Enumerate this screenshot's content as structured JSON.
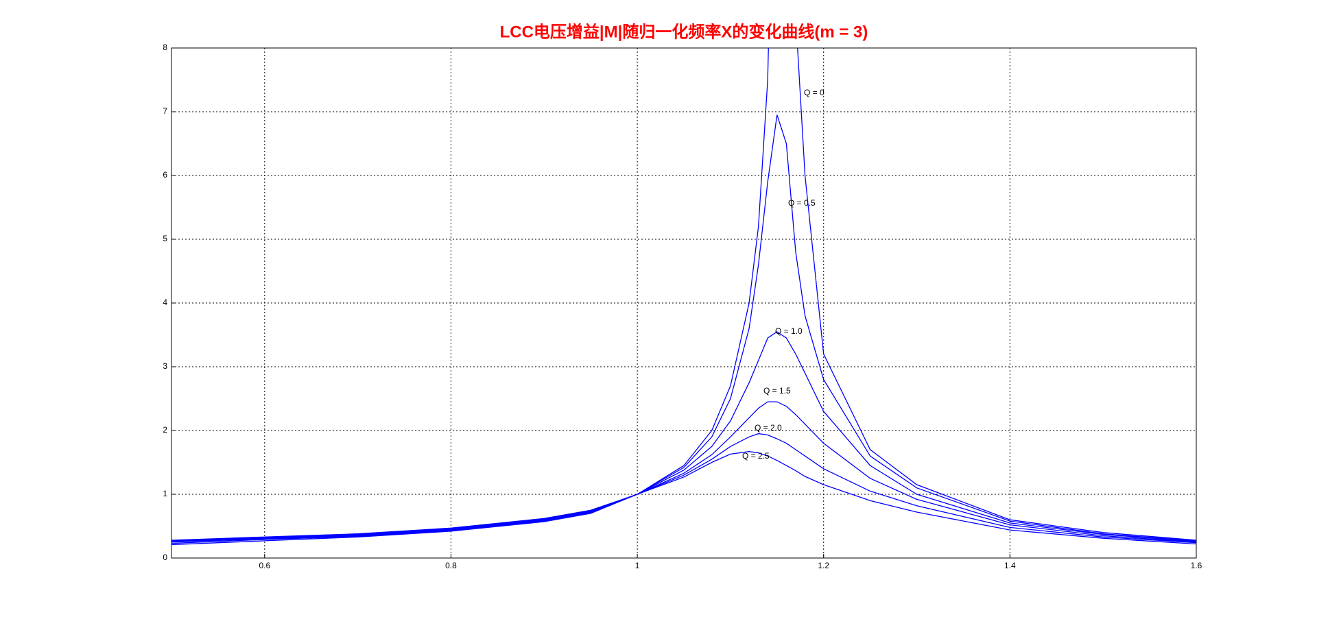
{
  "chart_data": {
    "type": "line",
    "title": "LCC电压增益|M|随归一化频率X的变化曲线(m = 3)",
    "x": [
      0.5,
      0.6,
      0.7,
      0.8,
      0.9,
      0.95,
      1.0,
      1.05,
      1.08,
      1.1,
      1.12,
      1.13,
      1.14,
      1.15,
      1.16,
      1.17,
      1.18,
      1.2,
      1.25,
      1.3,
      1.4,
      1.5,
      1.6
    ],
    "series": [
      {
        "name": "Q = 0",
        "color": "#0000ff",
        "values": [
          0.28,
          0.33,
          0.38,
          0.47,
          0.62,
          0.75,
          1,
          1.45,
          2.0,
          2.7,
          4.0,
          5.2,
          7.5,
          14,
          14,
          8.5,
          6.0,
          3.2,
          1.7,
          1.15,
          0.6,
          0.4,
          0.28
        ]
      },
      {
        "name": "Q = 0.5",
        "color": "#0000ff",
        "values": [
          0.27,
          0.32,
          0.37,
          0.46,
          0.61,
          0.74,
          1,
          1.42,
          1.9,
          2.5,
          3.6,
          4.6,
          5.9,
          6.95,
          6.5,
          4.8,
          3.8,
          2.8,
          1.6,
          1.1,
          0.58,
          0.38,
          0.27
        ]
      },
      {
        "name": "Q = 1.0",
        "color": "#0000ff",
        "values": [
          0.26,
          0.31,
          0.36,
          0.45,
          0.6,
          0.73,
          1,
          1.38,
          1.75,
          2.15,
          2.75,
          3.1,
          3.45,
          3.55,
          3.45,
          3.2,
          2.9,
          2.3,
          1.45,
          1.0,
          0.55,
          0.37,
          0.26
        ]
      },
      {
        "name": "Q = 1.5",
        "color": "#0000ff",
        "values": [
          0.25,
          0.3,
          0.35,
          0.44,
          0.59,
          0.72,
          1,
          1.33,
          1.62,
          1.9,
          2.2,
          2.35,
          2.45,
          2.45,
          2.38,
          2.25,
          2.1,
          1.8,
          1.25,
          0.92,
          0.52,
          0.35,
          0.25
        ]
      },
      {
        "name": "Q = 2.0",
        "color": "#0000ff",
        "values": [
          0.23,
          0.29,
          0.34,
          0.43,
          0.58,
          0.71,
          1,
          1.3,
          1.55,
          1.75,
          1.9,
          1.95,
          1.93,
          1.87,
          1.8,
          1.7,
          1.6,
          1.4,
          1.05,
          0.82,
          0.48,
          0.33,
          0.24
        ]
      },
      {
        "name": "Q = 2.5",
        "color": "#0000ff",
        "values": [
          0.21,
          0.27,
          0.33,
          0.42,
          0.57,
          0.7,
          1,
          1.27,
          1.5,
          1.63,
          1.67,
          1.65,
          1.6,
          1.53,
          1.45,
          1.37,
          1.28,
          1.15,
          0.9,
          0.72,
          0.44,
          0.31,
          0.22
        ]
      }
    ],
    "xlim": [
      0.5,
      1.6
    ],
    "xticks": [
      0.6,
      0.8,
      1,
      1.2,
      1.4,
      1.6
    ],
    "ylim": [
      0,
      8
    ],
    "yticks": [
      0,
      1,
      2,
      3,
      4,
      5,
      6,
      7,
      8
    ],
    "grid": true
  }
}
